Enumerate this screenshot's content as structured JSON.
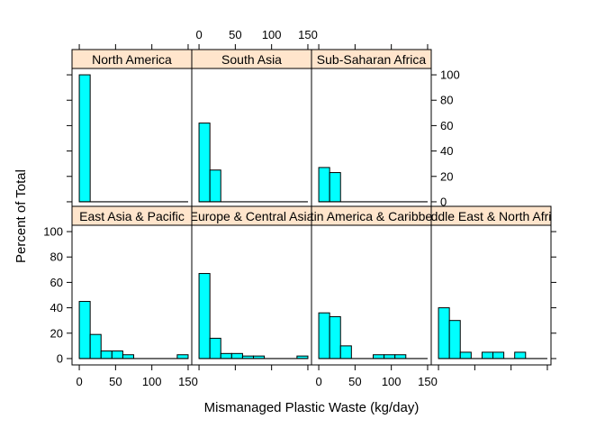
{
  "chart_data": {
    "type": "bar",
    "subtype": "lattice-histogram",
    "xlabel": "Mismanaged Plastic Waste (kg/day)",
    "ylabel": "Percent of Total",
    "xlim": [
      -10,
      155
    ],
    "ylim": [
      -5,
      105
    ],
    "x_ticks": [
      0,
      50,
      100,
      150
    ],
    "y_ticks": [
      0,
      20,
      40,
      60,
      80,
      100
    ],
    "bin_width": 15,
    "bin_starts": [
      0,
      15,
      30,
      45,
      60,
      75,
      90,
      105,
      120,
      135
    ],
    "colors": {
      "bar_fill": "#00ffff",
      "strip_fill": "#ffe5cc",
      "axis": "#000000"
    },
    "panels": [
      {
        "name": "North America",
        "row": 0,
        "col": 0,
        "values": [
          100,
          0,
          0,
          0,
          0,
          0,
          0,
          0,
          0,
          0
        ]
      },
      {
        "name": "South Asia",
        "row": 0,
        "col": 1,
        "values": [
          62,
          25,
          0,
          0,
          0,
          0,
          0,
          0,
          0,
          0
        ]
      },
      {
        "name": "Sub-Saharan Africa",
        "row": 0,
        "col": 2,
        "values": [
          27,
          23,
          0,
          0,
          0,
          0,
          0,
          0,
          0,
          0
        ]
      },
      {
        "name": "East Asia & Pacific",
        "row": 1,
        "col": 0,
        "values": [
          45,
          19,
          6,
          6,
          3,
          0,
          0,
          0,
          0,
          3
        ]
      },
      {
        "name": "Europe & Central Asia",
        "row": 1,
        "col": 1,
        "values": [
          67,
          16,
          4,
          4,
          2,
          2,
          0,
          0,
          0,
          2
        ]
      },
      {
        "name": "Latin America & Caribbean",
        "row": 1,
        "col": 2,
        "values": [
          36,
          33,
          10,
          0,
          0,
          3,
          3,
          3,
          0,
          0
        ]
      },
      {
        "name": "Middle East & North Africa",
        "row": 1,
        "col": 3,
        "values": [
          40,
          30,
          5,
          0,
          5,
          5,
          0,
          5,
          0,
          0
        ]
      }
    ]
  }
}
